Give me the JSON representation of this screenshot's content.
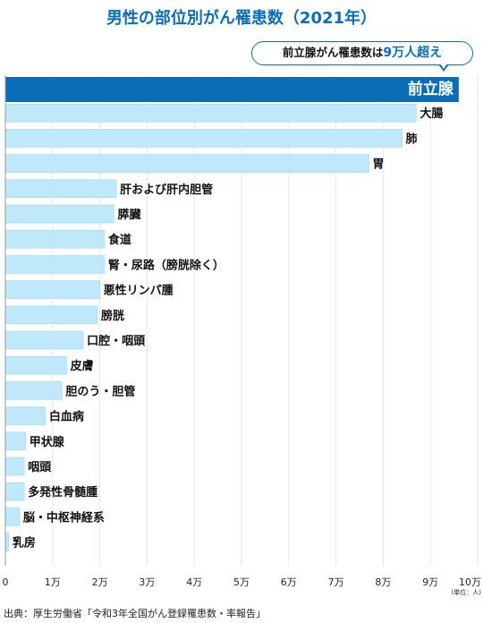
{
  "title": "男性の部位別がん罹患数（2021年）",
  "callout": {
    "prefix": "前立腺がん罹患数は",
    "highlight": "9万人超え"
  },
  "unit_label": "(単位：人)",
  "source": "出典：厚生労働省「令和3年全国がん登録罹患数・率報告」",
  "colors": {
    "highlight_bar": "#0a6db6",
    "bar": "#bfe8fb",
    "bar_stroke": "#9dd8f3",
    "accent": "#0a6db6",
    "grid": "#e6e6e6"
  },
  "chart_data": {
    "type": "bar",
    "orientation": "horizontal",
    "title": "男性の部位別がん罹患数（2021年）",
    "xlabel": "",
    "ylabel": "",
    "xlim": [
      0,
      100000
    ],
    "ticks": [
      "0",
      "1万",
      "2万",
      "3万",
      "4万",
      "5万",
      "6万",
      "7万",
      "8万",
      "9万",
      "10万"
    ],
    "categories": [
      "前立腺",
      "大腸",
      "肺",
      "胃",
      "肝および肝内胆管",
      "膵臓",
      "食道",
      "腎・尿路（膀胱除く）",
      "悪性リンパ腫",
      "膀胱",
      "口腔・咽頭",
      "皮膚",
      "胆のう・胆管",
      "白血病",
      "甲状腺",
      "咽頭",
      "多発性骨髄腫",
      "脳・中枢神経系",
      "乳房"
    ],
    "values": [
      96000,
      87000,
      84000,
      77000,
      23500,
      23000,
      21000,
      21000,
      20000,
      19500,
      16500,
      13000,
      12000,
      8500,
      4300,
      4000,
      4000,
      3000,
      700
    ],
    "highlight_index": 0,
    "grid": true
  }
}
